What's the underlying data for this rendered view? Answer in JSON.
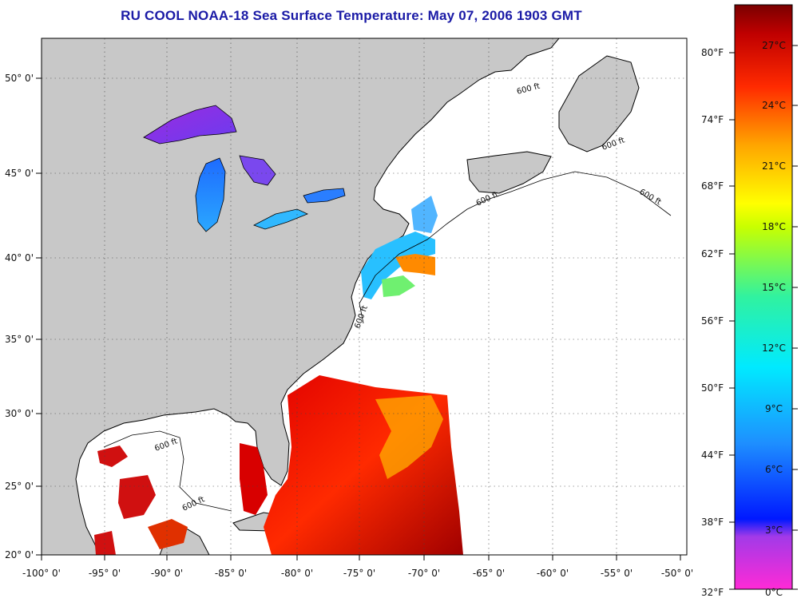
{
  "title": "RU COOL  NOAA-18  Sea Surface Temperature:  May 07, 2006 1903 GMT",
  "map": {
    "lon_labels": [
      "-100° 0'",
      "-95° 0'",
      "-90° 0'",
      "-85° 0'",
      "-80° 0'",
      "-75° 0'",
      "-70° 0'",
      "-65° 0'",
      "-60° 0'",
      "-55° 0'",
      "-50° 0'"
    ],
    "lat_labels": [
      "20° 0'",
      "25° 0'",
      "30° 0'",
      "35° 0'",
      "40° 0'",
      "45° 0'",
      "50° 0'"
    ],
    "isobath_label": "600 ft",
    "colors": {
      "land": "#c8c8c8",
      "ocean_nodata": "#ffffff",
      "coastline": "#000000"
    }
  },
  "colorbar": {
    "fahrenheit_labels": [
      "80°F",
      "74°F",
      "68°F",
      "62°F",
      "56°F",
      "50°F",
      "44°F",
      "38°F",
      "32°F"
    ],
    "celsius_labels": [
      "27°C",
      "24°C",
      "21°C",
      "18°C",
      "15°C",
      "12°C",
      "9°C",
      "6°C",
      "3°C",
      "0°C"
    ],
    "colors": [
      "#ff2ad6",
      "#8a2be2",
      "#0018ff",
      "#1e8fff",
      "#00e5ff",
      "#34f5a0",
      "#c8ff00",
      "#ffff00",
      "#ffa500",
      "#ff3000",
      "#c00000",
      "#7a0000"
    ]
  }
}
